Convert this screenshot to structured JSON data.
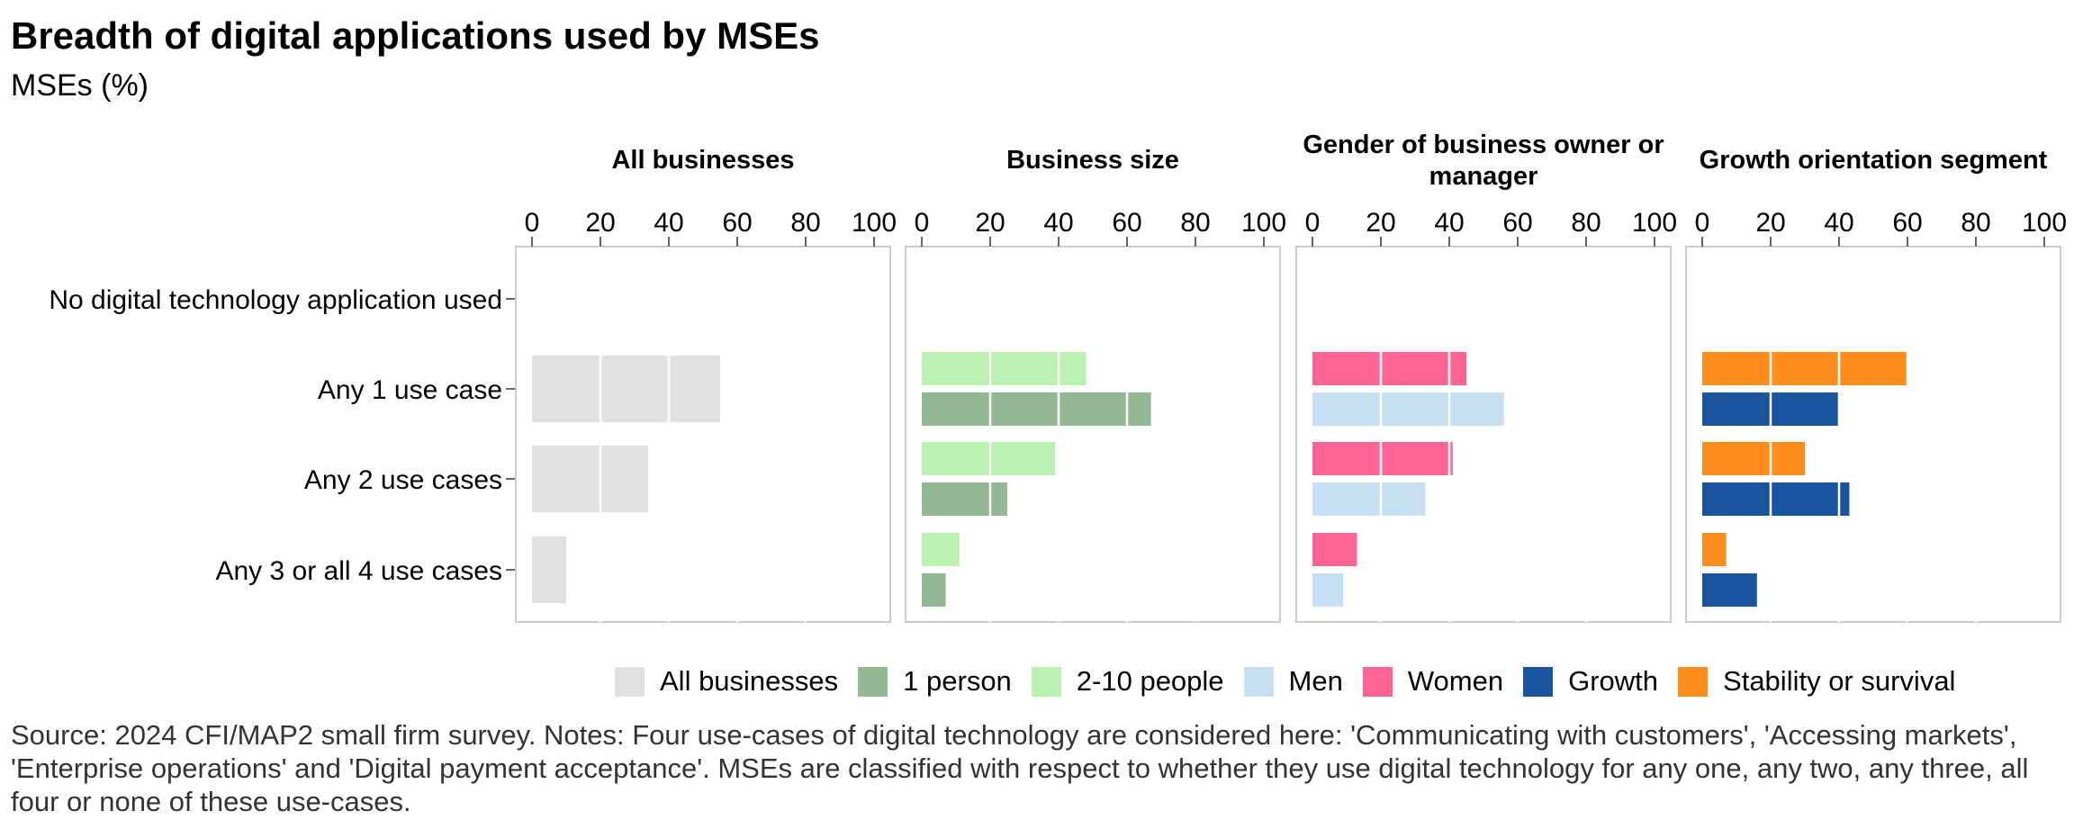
{
  "title": "Breadth of digital applications used by MSEs",
  "subtitle": "MSEs (%)",
  "source": "Source: 2024 CFI/MAP2 small firm survey. Notes: Four use-cases of digital technology are considered here: 'Communicating with customers', 'Accessing markets', 'Enterprise operations' and 'Digital payment acceptance'. MSEs are classified with respect to whether they use digital technology for any one, any two, any three, all four or none of these use-cases.",
  "legend": [
    {
      "label": "All businesses",
      "color": "#e0e0e0"
    },
    {
      "label": "1 person",
      "color": "#93b894"
    },
    {
      "label": "2-10 people",
      "color": "#baf0b0"
    },
    {
      "label": "Men",
      "color": "#c6e0f1"
    },
    {
      "label": "Women",
      "color": "#ff6592"
    },
    {
      "label": "Growth",
      "color": "#1b549f"
    },
    {
      "label": "Stability or survival",
      "color": "#ff8d1e"
    }
  ],
  "chart_data": {
    "type": "bar",
    "orientation": "horizontal",
    "categories": [
      "No digital technology application used",
      "Any 1 use case",
      "Any 2 use cases",
      "Any 3 or all 4 use cases"
    ],
    "xlim": [
      0,
      100
    ],
    "xticks": [
      "0",
      "20",
      "40",
      "60",
      "80",
      "100"
    ],
    "grid": false,
    "legend_position": "bottom",
    "panels": [
      {
        "title": "All businesses",
        "series": [
          {
            "name": "All businesses",
            "color": "#e0e0e0",
            "values": [
              0,
              55,
              34,
              10
            ]
          }
        ]
      },
      {
        "title": "Business size",
        "series": [
          {
            "name": "2-10 people",
            "color": "#baf0b0",
            "values": [
              0,
              48,
              39,
              11
            ]
          },
          {
            "name": "1 person",
            "color": "#93b894",
            "values": [
              0,
              67,
              25,
              7
            ]
          }
        ]
      },
      {
        "title": "Gender of business owner or manager",
        "series": [
          {
            "name": "Women",
            "color": "#ff6592",
            "values": [
              0,
              45,
              41,
              13
            ]
          },
          {
            "name": "Men",
            "color": "#c6e0f1",
            "values": [
              0,
              56,
              33,
              9
            ]
          }
        ]
      },
      {
        "title": "Growth orientation segment",
        "series": [
          {
            "name": "Stability or survival",
            "color": "#ff8d1e",
            "values": [
              0,
              60,
              30,
              7
            ]
          },
          {
            "name": "Growth",
            "color": "#1b549f",
            "values": [
              0,
              40,
              43,
              16
            ]
          }
        ]
      }
    ]
  }
}
